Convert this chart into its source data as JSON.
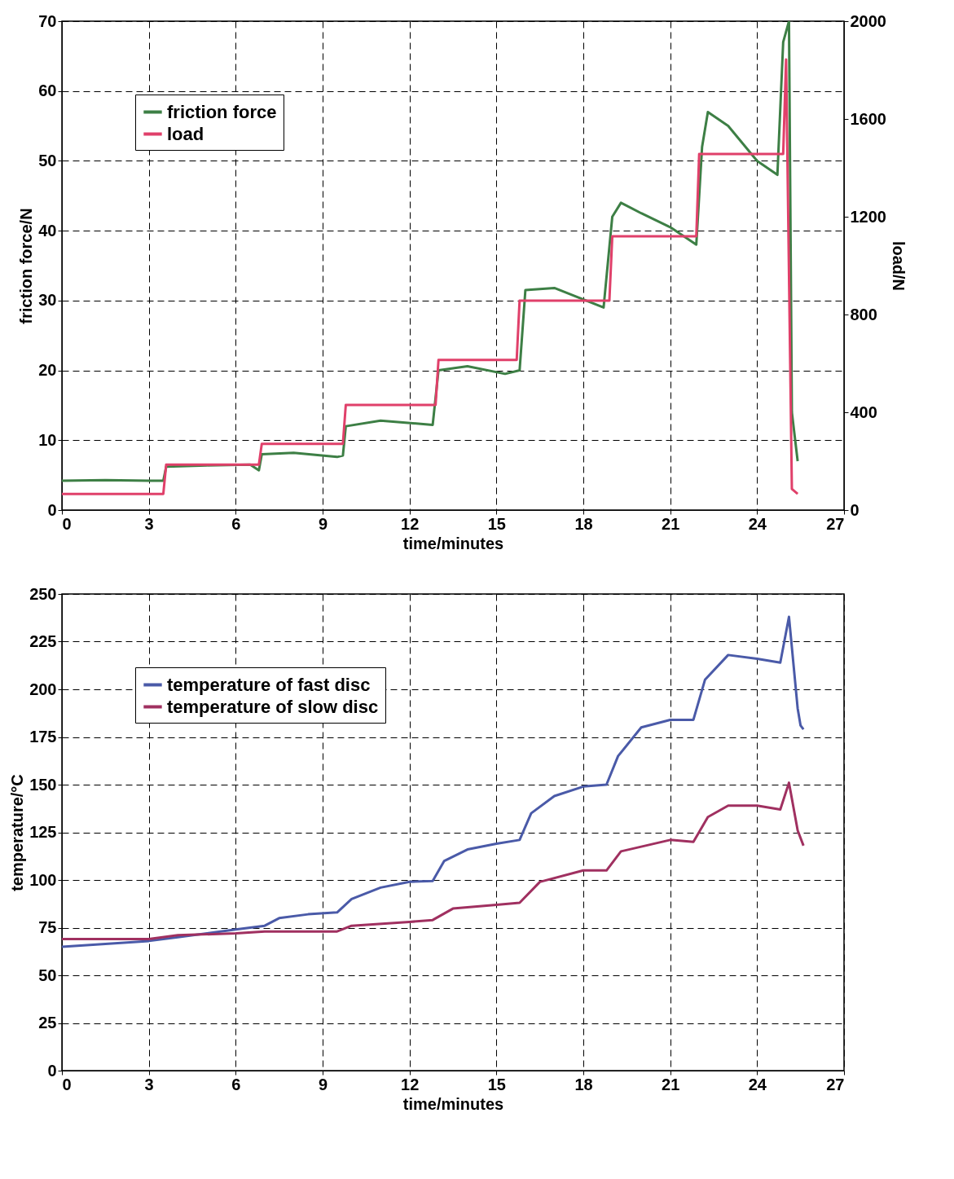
{
  "chart_data": [
    {
      "type": "line",
      "xlabel": "time/minutes",
      "ylabel": "friction force/N",
      "y2label": "load/N",
      "xlim": [
        0,
        27
      ],
      "xticks": [
        0,
        3,
        6,
        9,
        12,
        15,
        18,
        21,
        24,
        27
      ],
      "ylim": [
        0,
        70
      ],
      "yticks": [
        0,
        10,
        20,
        30,
        40,
        50,
        60,
        70
      ],
      "y2lim": [
        0,
        2000
      ],
      "y2ticks": [
        0,
        400,
        800,
        1200,
        1600,
        2000
      ],
      "grid": true,
      "legend": "top left",
      "marker": "none",
      "line_style": "solid",
      "series": [
        {
          "name": "friction force",
          "color": "#3d7f45",
          "x": [
            0,
            1.5,
            3,
            3.5,
            3.6,
            5,
            6.5,
            6.8,
            6.9,
            8,
            9.5,
            9.7,
            9.8,
            11,
            12.8,
            13,
            14,
            15.3,
            15.8,
            16,
            17,
            18.7,
            19.0,
            19.3,
            20,
            21,
            21.9,
            22.1,
            22.3,
            23,
            24,
            24.7,
            24.9,
            25.1,
            25.2,
            25.4
          ],
          "values": [
            4.2,
            4.3,
            4.2,
            4.2,
            6.2,
            6.4,
            6.5,
            5.7,
            8,
            8.2,
            7.6,
            7.8,
            12,
            12.8,
            12.2,
            20,
            20.6,
            19.5,
            20,
            31.5,
            31.8,
            29,
            42,
            44,
            42.5,
            40.5,
            38,
            52,
            57,
            55,
            50,
            48,
            67,
            70,
            14,
            7
          ]
        },
        {
          "name": "load",
          "color": "#e0406a",
          "axis": "y2",
          "x": [
            0,
            3.5,
            3.6,
            6.8,
            6.9,
            9.7,
            9.8,
            12.9,
            13,
            15.7,
            15.8,
            18.9,
            19.0,
            21.9,
            22,
            24.9,
            25.0,
            25.2,
            25.4
          ],
          "values": [
            66,
            66,
            186,
            186,
            271,
            271,
            430,
            430,
            614,
            614,
            857,
            857,
            1120,
            1120,
            1457,
            1457,
            1843,
            86,
            66
          ]
        }
      ]
    },
    {
      "type": "line",
      "xlabel": "time/minutes",
      "ylabel": "temperature/°C",
      "xlim": [
        0,
        27
      ],
      "xticks": [
        0,
        3,
        6,
        9,
        12,
        15,
        18,
        21,
        24,
        27
      ],
      "ylim": [
        0,
        250
      ],
      "yticks": [
        0,
        25,
        50,
        75,
        100,
        125,
        150,
        175,
        200,
        225,
        250
      ],
      "grid": true,
      "legend": "top left",
      "marker": "none",
      "line_style": "solid",
      "series": [
        {
          "name": "temperature of fast disc",
          "color": "#4a5aa8",
          "x": [
            0,
            3,
            4,
            6,
            7,
            7.5,
            8.5,
            9.5,
            10,
            11,
            12,
            12.8,
            13.2,
            14,
            15,
            15.8,
            16.2,
            17,
            18,
            18.8,
            19.2,
            20,
            21,
            21.8,
            22.2,
            23,
            24,
            24.8,
            25.1,
            25.4,
            25.5,
            25.6
          ],
          "values": [
            65,
            68,
            70,
            74,
            76,
            80,
            82,
            83,
            90,
            96,
            99,
            99.5,
            110,
            116,
            119,
            121,
            135,
            144,
            149,
            150,
            165,
            180,
            184,
            184,
            205,
            218,
            216,
            214,
            238,
            190,
            181,
            179
          ]
        },
        {
          "name": "temperature of slow disc",
          "color": "#a03060",
          "x": [
            0,
            3,
            4,
            6,
            7,
            9.5,
            10,
            12,
            12.8,
            13.5,
            15,
            15.8,
            16.5,
            18,
            18.8,
            19.3,
            21,
            21.8,
            22.3,
            23,
            24,
            24.8,
            25.1,
            25.4,
            25.6
          ],
          "values": [
            69,
            69,
            71,
            72,
            73,
            73,
            76,
            78,
            79,
            85,
            87,
            88,
            99,
            105,
            105,
            115,
            121,
            120,
            133,
            139,
            139,
            137,
            151,
            126,
            118
          ]
        }
      ]
    }
  ]
}
